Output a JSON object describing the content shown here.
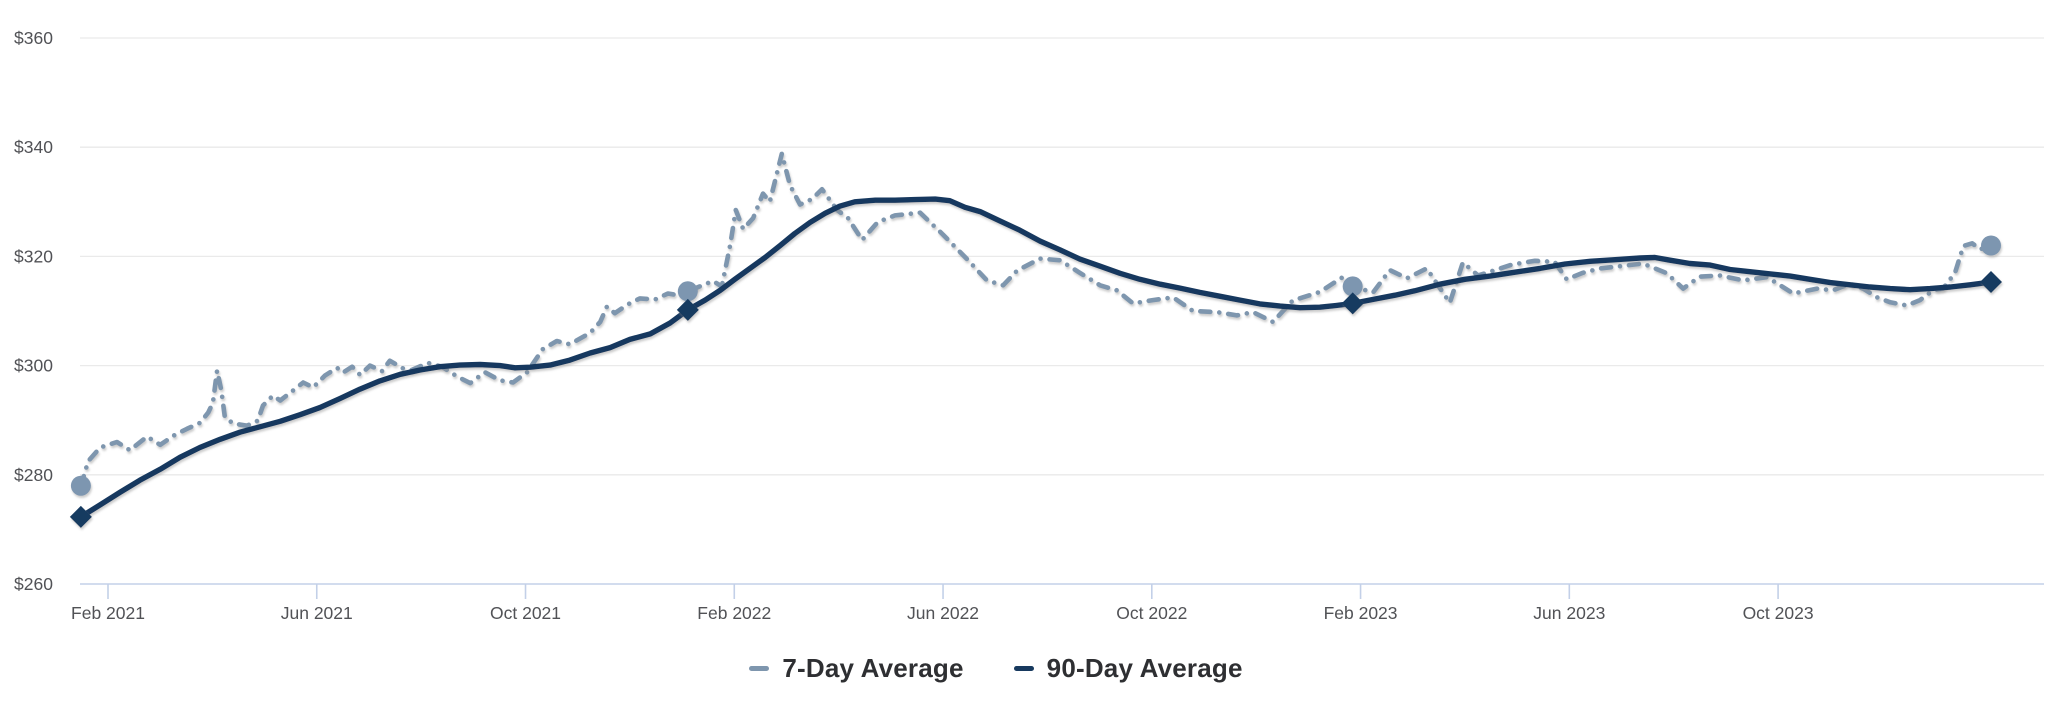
{
  "chart_data": {
    "type": "line",
    "title": "",
    "x_axis": {
      "unit": "months_since_2021-01-01",
      "grid": false,
      "ticks": [
        {
          "m": 1,
          "label": "Feb 2021"
        },
        {
          "m": 5,
          "label": "Jun 2021"
        },
        {
          "m": 9,
          "label": "Oct 2021"
        },
        {
          "m": 13,
          "label": "Feb 2022"
        },
        {
          "m": 17,
          "label": "Jun 2022"
        },
        {
          "m": 21,
          "label": "Oct 2022"
        },
        {
          "m": 25,
          "label": "Feb 2023"
        },
        {
          "m": 29,
          "label": "Jun 2023"
        },
        {
          "m": 33,
          "label": "Oct 2023"
        }
      ]
    },
    "y_axis": {
      "unit": "USD",
      "range": [
        260,
        360
      ],
      "grid": true,
      "ticks": [
        {
          "v": 260,
          "label": "$260"
        },
        {
          "v": 280,
          "label": "$280"
        },
        {
          "v": 300,
          "label": "$300"
        },
        {
          "v": 320,
          "label": "$320"
        },
        {
          "v": 340,
          "label": "$340"
        },
        {
          "v": 360,
          "label": "$360"
        }
      ]
    },
    "legend_position": "bottom-center",
    "style": {
      "gridline_color": "#eaeaea",
      "axis_line_color": "#ccd7ec",
      "tick_color": "#c3d0e8",
      "axis_label_color": "#515256",
      "legend_text_color": "#2e2f32",
      "background": "#ffffff"
    },
    "series": [
      {
        "name": "7-Day Average",
        "color": "#7E96AE",
        "line_style": "dashed",
        "marker": "circle",
        "marker_color": "#7D96B0",
        "anchor_points": [
          [
            0.48,
            278.0
          ],
          [
            12.11,
            313.6
          ],
          [
            24.85,
            314.5
          ],
          [
            37.08,
            322.0
          ]
        ],
        "points": [
          [
            0.48,
            278.0
          ],
          [
            0.62,
            282.5
          ],
          [
            0.85,
            285.0
          ],
          [
            1.17,
            286.0
          ],
          [
            1.42,
            284.5
          ],
          [
            1.75,
            287.0
          ],
          [
            2.0,
            285.5
          ],
          [
            2.28,
            287.3
          ],
          [
            2.51,
            288.4
          ],
          [
            2.76,
            289.5
          ],
          [
            2.92,
            291.4
          ],
          [
            3.01,
            293.2
          ],
          [
            3.09,
            299.1
          ],
          [
            3.17,
            295.5
          ],
          [
            3.24,
            290.5
          ],
          [
            3.4,
            289.4
          ],
          [
            3.66,
            289.0
          ],
          [
            3.87,
            289.9
          ],
          [
            3.97,
            292.7
          ],
          [
            4.16,
            294.5
          ],
          [
            4.3,
            293.6
          ],
          [
            4.54,
            295.4
          ],
          [
            4.74,
            296.9
          ],
          [
            4.93,
            296.0
          ],
          [
            5.16,
            298.2
          ],
          [
            5.39,
            299.6
          ],
          [
            5.5,
            298.7
          ],
          [
            5.68,
            299.8
          ],
          [
            5.83,
            298.3
          ],
          [
            6.02,
            300.0
          ],
          [
            6.25,
            299.0
          ],
          [
            6.4,
            300.9
          ],
          [
            6.65,
            299.5
          ],
          [
            6.82,
            299.2
          ],
          [
            7.13,
            300.5
          ],
          [
            7.4,
            299.8
          ],
          [
            7.69,
            298.0
          ],
          [
            7.94,
            296.8
          ],
          [
            8.22,
            298.8
          ],
          [
            8.51,
            297.3
          ],
          [
            8.76,
            296.9
          ],
          [
            9.03,
            298.8
          ],
          [
            9.33,
            303.0
          ],
          [
            9.6,
            304.5
          ],
          [
            9.85,
            303.9
          ],
          [
            10.24,
            306.0
          ],
          [
            10.43,
            308.0
          ],
          [
            10.56,
            310.8
          ],
          [
            10.71,
            309.6
          ],
          [
            10.96,
            311.2
          ],
          [
            11.19,
            312.3
          ],
          [
            11.48,
            312.1
          ],
          [
            11.73,
            313.2
          ],
          [
            11.92,
            312.9
          ],
          [
            12.11,
            313.6
          ],
          [
            12.34,
            314.5
          ],
          [
            12.59,
            315.5
          ],
          [
            12.76,
            314.5
          ],
          [
            12.92,
            322.0
          ],
          [
            13.03,
            328.5
          ],
          [
            13.17,
            325.0
          ],
          [
            13.36,
            327.0
          ],
          [
            13.55,
            331.5
          ],
          [
            13.68,
            330.0
          ],
          [
            13.91,
            338.8
          ],
          [
            14.07,
            333.0
          ],
          [
            14.26,
            329.5
          ],
          [
            14.49,
            330.5
          ],
          [
            14.68,
            332.3
          ],
          [
            14.97,
            328.5
          ],
          [
            15.18,
            327.0
          ],
          [
            15.45,
            323.0
          ],
          [
            15.75,
            326.3
          ],
          [
            16.08,
            327.5
          ],
          [
            16.56,
            328.0
          ],
          [
            17.0,
            324.0
          ],
          [
            17.46,
            319.5
          ],
          [
            17.84,
            315.6
          ],
          [
            18.15,
            314.7
          ],
          [
            18.42,
            317.4
          ],
          [
            18.86,
            319.6
          ],
          [
            19.24,
            319.3
          ],
          [
            19.62,
            317.0
          ],
          [
            20.01,
            314.7
          ],
          [
            20.33,
            313.8
          ],
          [
            20.64,
            311.4
          ],
          [
            21.02,
            312.0
          ],
          [
            21.41,
            312.5
          ],
          [
            21.79,
            310.0
          ],
          [
            22.25,
            309.8
          ],
          [
            22.63,
            309.2
          ],
          [
            22.94,
            309.8
          ],
          [
            23.32,
            308.0
          ],
          [
            23.7,
            311.9
          ],
          [
            24.22,
            313.5
          ],
          [
            24.66,
            316.2
          ],
          [
            24.85,
            314.5
          ],
          [
            25.24,
            313.4
          ],
          [
            25.56,
            317.5
          ],
          [
            25.89,
            316.0
          ],
          [
            26.27,
            317.8
          ],
          [
            26.71,
            311.5
          ],
          [
            26.96,
            318.9
          ],
          [
            27.25,
            316.5
          ],
          [
            27.58,
            317.5
          ],
          [
            27.9,
            318.5
          ],
          [
            28.34,
            319.2
          ],
          [
            28.72,
            319.0
          ],
          [
            28.95,
            315.8
          ],
          [
            29.26,
            317.0
          ],
          [
            29.59,
            317.8
          ],
          [
            29.97,
            318.2
          ],
          [
            30.41,
            318.7
          ],
          [
            30.87,
            316.9
          ],
          [
            31.18,
            314.1
          ],
          [
            31.5,
            316.3
          ],
          [
            31.89,
            316.5
          ],
          [
            32.33,
            315.6
          ],
          [
            32.79,
            316.2
          ],
          [
            33.29,
            313.2
          ],
          [
            33.75,
            314.1
          ],
          [
            34.05,
            313.8
          ],
          [
            34.38,
            315.0
          ],
          [
            34.63,
            314.1
          ],
          [
            34.9,
            312.5
          ],
          [
            35.15,
            311.6
          ],
          [
            35.47,
            311.0
          ],
          [
            35.72,
            312.0
          ],
          [
            35.97,
            313.8
          ],
          [
            36.16,
            314.1
          ],
          [
            36.39,
            317.0
          ],
          [
            36.55,
            321.9
          ],
          [
            36.72,
            322.4
          ],
          [
            36.87,
            321.3
          ],
          [
            37.08,
            322.0
          ]
        ]
      },
      {
        "name": "90-Day Average",
        "color": "#17395E",
        "line_style": "solid",
        "marker": "diamond",
        "marker_color": "#133A60",
        "anchor_points": [
          [
            0.48,
            272.3
          ],
          [
            12.11,
            310.2
          ],
          [
            24.85,
            311.4
          ],
          [
            37.08,
            315.3
          ]
        ],
        "points": [
          [
            0.48,
            272.3
          ],
          [
            0.85,
            274.5
          ],
          [
            1.23,
            276.8
          ],
          [
            1.61,
            279.0
          ],
          [
            2.0,
            281.0
          ],
          [
            2.38,
            283.2
          ],
          [
            2.76,
            285.0
          ],
          [
            3.15,
            286.5
          ],
          [
            3.53,
            287.8
          ],
          [
            3.91,
            288.8
          ],
          [
            4.3,
            289.8
          ],
          [
            4.68,
            291.0
          ],
          [
            5.06,
            292.3
          ],
          [
            5.45,
            294.0
          ],
          [
            5.83,
            295.7
          ],
          [
            6.21,
            297.2
          ],
          [
            6.6,
            298.4
          ],
          [
            6.98,
            299.2
          ],
          [
            7.36,
            299.8
          ],
          [
            7.74,
            300.1
          ],
          [
            8.13,
            300.2
          ],
          [
            8.51,
            300.0
          ],
          [
            8.8,
            299.6
          ],
          [
            9.09,
            299.7
          ],
          [
            9.47,
            300.1
          ],
          [
            9.85,
            301.0
          ],
          [
            10.24,
            302.3
          ],
          [
            10.62,
            303.3
          ],
          [
            11.0,
            304.8
          ],
          [
            11.39,
            305.8
          ],
          [
            11.77,
            307.8
          ],
          [
            12.11,
            310.2
          ],
          [
            12.44,
            312.0
          ],
          [
            12.73,
            313.8
          ],
          [
            13.01,
            315.8
          ],
          [
            13.3,
            317.8
          ],
          [
            13.59,
            319.8
          ],
          [
            13.88,
            322.0
          ],
          [
            14.16,
            324.2
          ],
          [
            14.45,
            326.2
          ],
          [
            14.74,
            327.9
          ],
          [
            15.02,
            329.2
          ],
          [
            15.31,
            330.0
          ],
          [
            15.7,
            330.3
          ],
          [
            16.08,
            330.3
          ],
          [
            16.46,
            330.4
          ],
          [
            16.85,
            330.5
          ],
          [
            17.13,
            330.2
          ],
          [
            17.42,
            329.0
          ],
          [
            17.71,
            328.2
          ],
          [
            18.09,
            326.5
          ],
          [
            18.47,
            324.8
          ],
          [
            18.86,
            322.8
          ],
          [
            19.24,
            321.2
          ],
          [
            19.62,
            319.5
          ],
          [
            20.01,
            318.2
          ],
          [
            20.39,
            316.9
          ],
          [
            20.77,
            315.8
          ],
          [
            21.16,
            314.9
          ],
          [
            21.54,
            314.2
          ],
          [
            21.92,
            313.4
          ],
          [
            22.31,
            312.7
          ],
          [
            22.69,
            312.0
          ],
          [
            23.07,
            311.3
          ],
          [
            23.46,
            310.9
          ],
          [
            23.84,
            310.6
          ],
          [
            24.22,
            310.7
          ],
          [
            24.53,
            311.0
          ],
          [
            24.85,
            311.4
          ],
          [
            25.28,
            312.2
          ],
          [
            25.66,
            312.9
          ],
          [
            26.04,
            313.7
          ],
          [
            26.52,
            314.9
          ],
          [
            27.0,
            315.8
          ],
          [
            27.48,
            316.4
          ],
          [
            27.96,
            317.1
          ],
          [
            28.44,
            317.8
          ],
          [
            28.92,
            318.6
          ],
          [
            29.4,
            319.1
          ],
          [
            29.88,
            319.4
          ],
          [
            30.36,
            319.7
          ],
          [
            30.64,
            319.8
          ],
          [
            30.93,
            319.3
          ],
          [
            31.31,
            318.7
          ],
          [
            31.7,
            318.4
          ],
          [
            32.08,
            317.6
          ],
          [
            32.46,
            317.2
          ],
          [
            32.85,
            316.8
          ],
          [
            33.23,
            316.4
          ],
          [
            33.61,
            315.8
          ],
          [
            34.0,
            315.2
          ],
          [
            34.38,
            314.8
          ],
          [
            34.76,
            314.4
          ],
          [
            35.15,
            314.1
          ],
          [
            35.53,
            313.9
          ],
          [
            35.91,
            314.1
          ],
          [
            36.3,
            314.4
          ],
          [
            36.68,
            314.8
          ],
          [
            37.08,
            315.3
          ]
        ]
      }
    ]
  }
}
